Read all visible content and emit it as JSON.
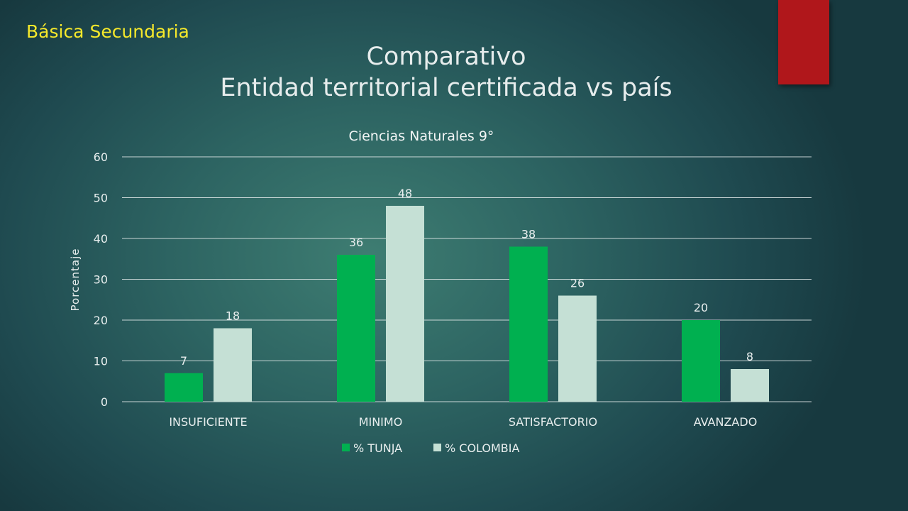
{
  "slide": {
    "section_label": "Básica Secundaria",
    "title_line1": "Comparativo",
    "title_line2": "Entidad territorial certificada vs país",
    "accent_color": "#b0171b"
  },
  "chart_data": {
    "type": "bar",
    "title": "Ciencias Naturales 9°",
    "xlabel": "",
    "ylabel": "Porcentaje",
    "categories": [
      "INSUFICIENTE",
      "MINIMO",
      "SATISFACTORIO",
      "AVANZADO"
    ],
    "series": [
      {
        "name": "% TUNJA",
        "values": [
          7,
          36,
          38,
          20
        ],
        "color": "#00b050"
      },
      {
        "name": "% COLOMBIA",
        "values": [
          18,
          48,
          26,
          8
        ],
        "color": "#c5e0d5"
      }
    ],
    "ylim": [
      0,
      60
    ],
    "yticks": [
      0,
      10,
      20,
      30,
      40,
      50,
      60
    ],
    "grid": true,
    "data_labels": true,
    "legend": "bottom"
  }
}
